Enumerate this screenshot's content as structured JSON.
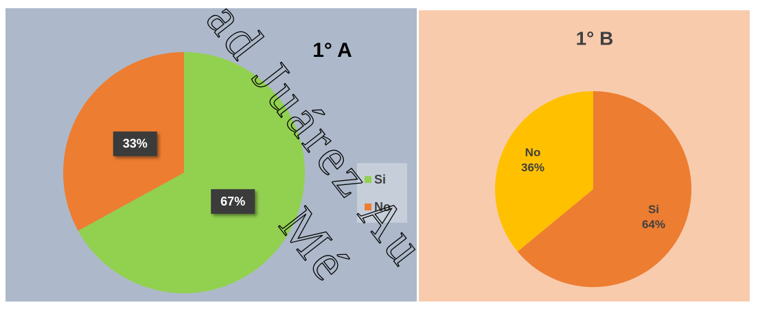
{
  "chart_data": [
    {
      "type": "pie",
      "title": "1° A",
      "categories": [
        "Si",
        "No"
      ],
      "values": [
        67,
        33
      ],
      "value_labels": [
        "67%",
        "33%"
      ],
      "colors": [
        "#92d050",
        "#ed7d31"
      ],
      "legend": "right",
      "background": "#adb9ca",
      "label_style": "box"
    },
    {
      "type": "pie",
      "title": "1° B",
      "categories": [
        "Si",
        "No"
      ],
      "values": [
        64,
        36
      ],
      "value_labels": [
        "64%",
        "36%"
      ],
      "colors": [
        "#ed7d31",
        "#ffc000"
      ],
      "background": "#f8cbad",
      "label_style": "category-value"
    }
  ],
  "watermark": [
    "ad Juárez Au",
    "Mé"
  ]
}
